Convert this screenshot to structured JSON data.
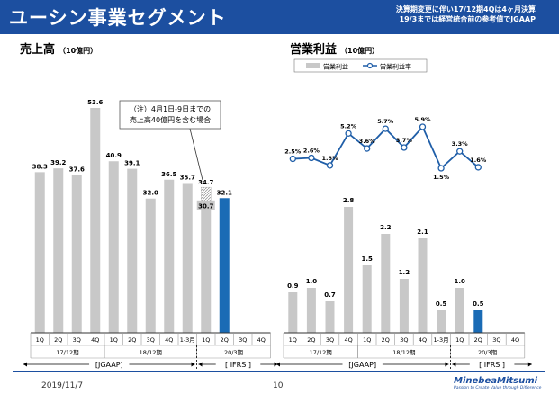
{
  "header": {
    "title": "ユーシン事業セグメント",
    "note_line1": "決算期変更に伴い17/12期4Qは4ヶ月決算",
    "note_line2": "19/3までは経営統合前の参考値でJGAAP"
  },
  "colors": {
    "header": "#1c4fa0",
    "bar_gray": "#c8c8c8",
    "bar_blue": "#1a6bb5",
    "line": "#1f5ea8"
  },
  "chart_data": [
    {
      "type": "bar",
      "title": "売上高",
      "unit": "（10億円）",
      "categories": [
        "1Q",
        "2Q",
        "3Q",
        "4Q",
        "1Q",
        "2Q",
        "3Q",
        "4Q",
        "1-3月",
        "1Q",
        "2Q",
        "3Q",
        "4Q"
      ],
      "periods": [
        {
          "label": "17/12期",
          "span": [
            0,
            3
          ]
        },
        {
          "label": "18/12期",
          "span": [
            4,
            8
          ]
        },
        {
          "label": "20/3期",
          "span": [
            9,
            12
          ]
        }
      ],
      "gaap_labels": [
        {
          "label": "[JGAAP]",
          "span": [
            0,
            9
          ]
        },
        {
          "label": "[ IFRS ]",
          "span": [
            9,
            12
          ]
        }
      ],
      "values": [
        38.3,
        39.2,
        37.6,
        53.6,
        40.9,
        39.1,
        32.0,
        36.5,
        35.7,
        34.7,
        32.1,
        null,
        null
      ],
      "highlight_index": 10,
      "hatched": {
        "index": 9,
        "base": 30.7,
        "total": 34.7
      },
      "annotation": {
        "line1": "（注）4月1日-9日までの",
        "line2": "売上高40億円を含む場合"
      },
      "ylim": [
        0,
        60
      ]
    },
    {
      "type": "bar+line",
      "title": "営業利益",
      "unit": "（10億円）",
      "legend": {
        "bar": "営業利益",
        "line": "営業利益率"
      },
      "categories": [
        "1Q",
        "2Q",
        "3Q",
        "4Q",
        "1Q",
        "2Q",
        "3Q",
        "4Q",
        "1-3月",
        "1Q",
        "2Q",
        "3Q",
        "4Q"
      ],
      "periods": [
        {
          "label": "17/12期",
          "span": [
            0,
            3
          ]
        },
        {
          "label": "18/12期",
          "span": [
            4,
            8
          ]
        },
        {
          "label": "20/3期",
          "span": [
            9,
            12
          ]
        }
      ],
      "gaap_labels": [
        {
          "label": "[JGAAP]",
          "span": [
            0,
            9
          ]
        },
        {
          "label": "[ IFRS ]",
          "span": [
            9,
            12
          ]
        }
      ],
      "bar_values": [
        0.9,
        1.0,
        0.7,
        2.8,
        1.5,
        2.2,
        1.2,
        2.1,
        0.5,
        1.0,
        0.5,
        null,
        null
      ],
      "margin_values": [
        2.5,
        2.6,
        1.8,
        5.2,
        3.6,
        5.7,
        3.7,
        5.9,
        1.5,
        3.3,
        1.6,
        null,
        null
      ],
      "margin_labels": [
        "2.5%",
        "2.6%",
        "1.8%",
        "5.2%",
        "3.6%",
        "5.7%",
        "3.7%",
        "5.9%",
        "1.5%",
        "3.3%",
        "1.6%",
        null,
        null
      ],
      "highlight_index": 10,
      "ylim": [
        0,
        3.5
      ]
    }
  ],
  "footer": {
    "date": "2019/11/7",
    "page": "10",
    "logo_name": "MinebeaMitsumi",
    "logo_tagline": "Passion to Create Value through Difference"
  }
}
